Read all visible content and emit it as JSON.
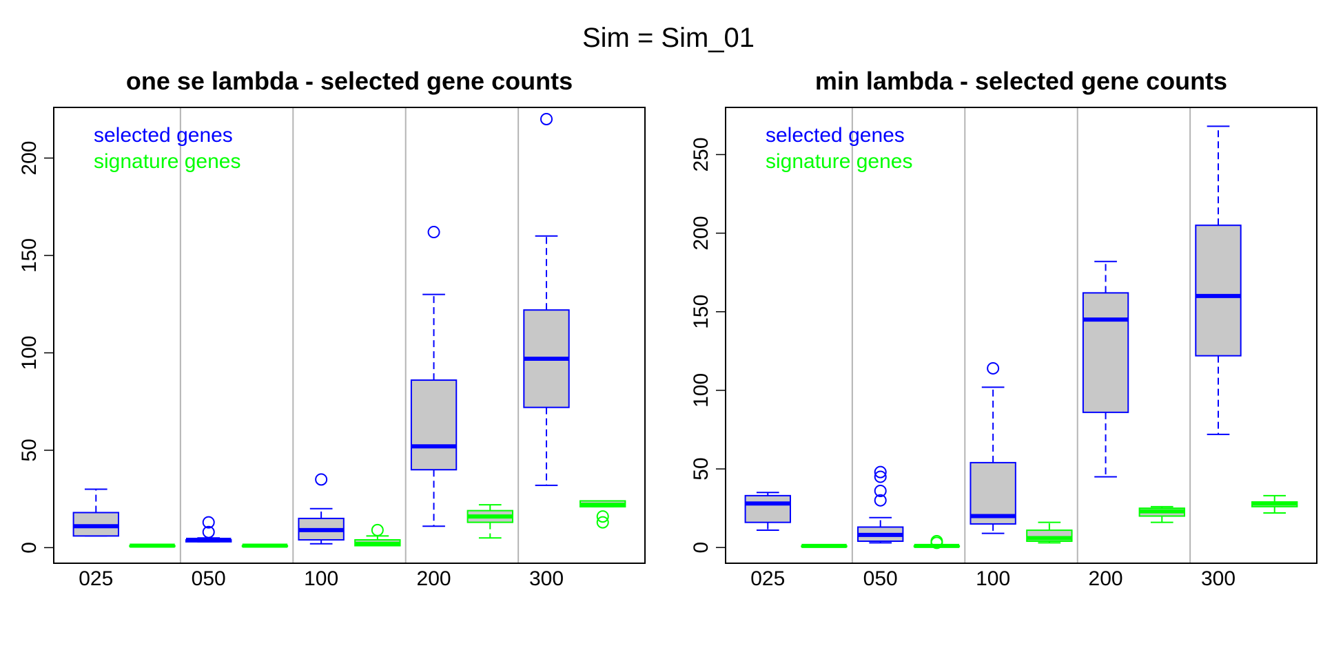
{
  "suptitle": "Sim = Sim_01",
  "colors": {
    "selected": "#0000ff",
    "signature": "#00ff00",
    "box_fill": "#c8c8c8",
    "separator": "#b4b4b4"
  },
  "chart_data": [
    {
      "type": "boxplot",
      "title": "one se lambda - selected gene counts",
      "xlabel": "",
      "ylabel": "",
      "ylim": [
        -8,
        226
      ],
      "yticks": [
        0,
        50,
        100,
        150,
        200
      ],
      "categories": [
        "025",
        "050",
        "100",
        "200",
        "300"
      ],
      "legend": {
        "position": "top-left",
        "entries": [
          "selected genes",
          "signature genes"
        ]
      },
      "series": [
        {
          "name": "selected genes",
          "color": "#0000ff",
          "boxes": [
            {
              "whisker_low": 6,
              "q1": 6,
              "median": 11,
              "q3": 18,
              "whisker_high": 30,
              "outliers": []
            },
            {
              "whisker_low": 3,
              "q1": 3,
              "median": 4,
              "q3": 4,
              "whisker_high": 5,
              "outliers": [
                8,
                13
              ]
            },
            {
              "whisker_low": 2,
              "q1": 4,
              "median": 9,
              "q3": 15,
              "whisker_high": 20,
              "outliers": [
                35
              ]
            },
            {
              "whisker_low": 11,
              "q1": 40,
              "median": 52,
              "q3": 86,
              "whisker_high": 130,
              "outliers": [
                162
              ]
            },
            {
              "whisker_low": 32,
              "q1": 72,
              "median": 97,
              "q3": 122,
              "whisker_high": 160,
              "outliers": [
                220
              ]
            }
          ]
        },
        {
          "name": "signature genes",
          "color": "#00ff00",
          "boxes": [
            {
              "whisker_low": 1,
              "q1": 1,
              "median": 1,
              "q3": 1,
              "whisker_high": 1,
              "outliers": []
            },
            {
              "whisker_low": 1,
              "q1": 1,
              "median": 1,
              "q3": 1,
              "whisker_high": 1,
              "outliers": []
            },
            {
              "whisker_low": 1,
              "q1": 1,
              "median": 2,
              "q3": 4,
              "whisker_high": 6,
              "outliers": [
                9
              ]
            },
            {
              "whisker_low": 5,
              "q1": 13,
              "median": 16,
              "q3": 19,
              "whisker_high": 22,
              "outliers": []
            },
            {
              "whisker_low": 21,
              "q1": 21,
              "median": 22,
              "q3": 24,
              "whisker_high": 24,
              "outliers": [
                13,
                16
              ]
            }
          ]
        }
      ]
    },
    {
      "type": "boxplot",
      "title": "min lambda - selected gene counts",
      "xlabel": "",
      "ylabel": "",
      "ylim": [
        -10,
        280
      ],
      "yticks": [
        0,
        50,
        100,
        150,
        200,
        250
      ],
      "categories": [
        "025",
        "050",
        "100",
        "200",
        "300"
      ],
      "legend": {
        "position": "top-left",
        "entries": [
          "selected genes",
          "signature genes"
        ]
      },
      "series": [
        {
          "name": "selected genes",
          "color": "#0000ff",
          "boxes": [
            {
              "whisker_low": 11,
              "q1": 16,
              "median": 28,
              "q3": 33,
              "whisker_high": 35,
              "outliers": []
            },
            {
              "whisker_low": 3,
              "q1": 4,
              "median": 8,
              "q3": 13,
              "whisker_high": 19,
              "outliers": [
                30,
                36,
                45,
                48
              ]
            },
            {
              "whisker_low": 9,
              "q1": 15,
              "median": 20,
              "q3": 54,
              "whisker_high": 102,
              "outliers": [
                114
              ]
            },
            {
              "whisker_low": 45,
              "q1": 86,
              "median": 145,
              "q3": 162,
              "whisker_high": 182,
              "outliers": []
            },
            {
              "whisker_low": 72,
              "q1": 122,
              "median": 160,
              "q3": 205,
              "whisker_high": 268,
              "outliers": []
            }
          ]
        },
        {
          "name": "signature genes",
          "color": "#00ff00",
          "boxes": [
            {
              "whisker_low": 1,
              "q1": 1,
              "median": 1,
              "q3": 1,
              "whisker_high": 1,
              "outliers": []
            },
            {
              "whisker_low": 1,
              "q1": 1,
              "median": 1,
              "q3": 1,
              "whisker_high": 1,
              "outliers": [
                3,
                4
              ]
            },
            {
              "whisker_low": 3,
              "q1": 4,
              "median": 6,
              "q3": 11,
              "whisker_high": 16,
              "outliers": []
            },
            {
              "whisker_low": 16,
              "q1": 20,
              "median": 23,
              "q3": 25,
              "whisker_high": 26,
              "outliers": []
            },
            {
              "whisker_low": 22,
              "q1": 26,
              "median": 28,
              "q3": 29,
              "whisker_high": 33,
              "outliers": []
            }
          ]
        }
      ]
    }
  ]
}
